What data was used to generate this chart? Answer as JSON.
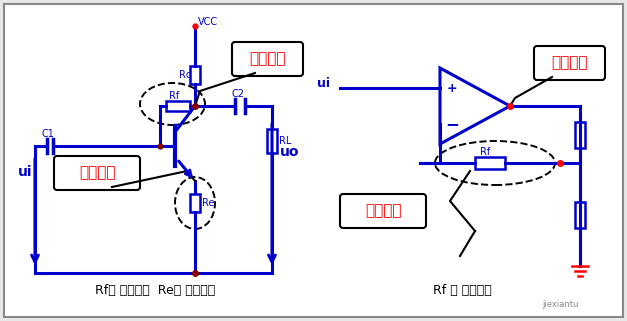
{
  "blue": "#0000CC",
  "red": "#FF0000",
  "dark_red": "#CC0000",
  "black": "#000000",
  "bg": "#f0f0f0",
  "white": "#ffffff",
  "gray_border": "#999999",
  "label_left": "Rf： 电压反馈  Re： 电流反馈",
  "label_right": "Rf ： 电流反馈",
  "zhijie": "直接输出",
  "jianjie": "间接输出",
  "vcc": "VCC",
  "rc": "Rc",
  "rf": "Rf",
  "c1": "C1",
  "c2": "C2",
  "re": "Re",
  "rl": "RL",
  "ui": "ui",
  "uo": "uo",
  "jiexiantu": "jiexiantu"
}
